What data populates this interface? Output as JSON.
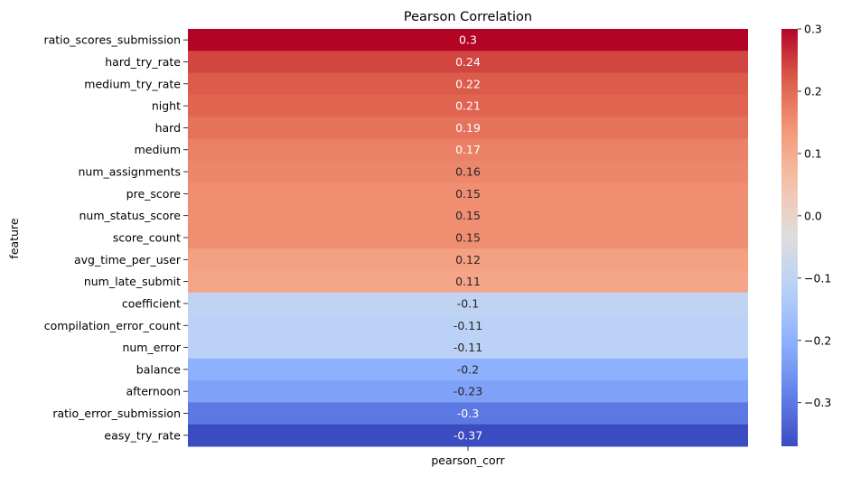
{
  "chart_data": {
    "type": "heatmap",
    "title": "Pearson Correlation",
    "xlabel": "pearson_corr",
    "ylabel": "feature",
    "columns": [
      "pearson_corr"
    ],
    "rows": [
      {
        "feature": "ratio_scores_submission",
        "value": 0.3,
        "label": "0.3"
      },
      {
        "feature": "hard_try_rate",
        "value": 0.24,
        "label": "0.24"
      },
      {
        "feature": "medium_try_rate",
        "value": 0.22,
        "label": "0.22"
      },
      {
        "feature": "night",
        "value": 0.21,
        "label": "0.21"
      },
      {
        "feature": "hard",
        "value": 0.19,
        "label": "0.19"
      },
      {
        "feature": "medium",
        "value": 0.17,
        "label": "0.17"
      },
      {
        "feature": "num_assignments",
        "value": 0.16,
        "label": "0.16"
      },
      {
        "feature": "pre_score",
        "value": 0.15,
        "label": "0.15"
      },
      {
        "feature": "num_status_score",
        "value": 0.15,
        "label": "0.15"
      },
      {
        "feature": "score_count",
        "value": 0.15,
        "label": "0.15"
      },
      {
        "feature": "avg_time_per_user",
        "value": 0.12,
        "label": "0.12"
      },
      {
        "feature": "num_late_submit",
        "value": 0.11,
        "label": "0.11"
      },
      {
        "feature": "coefficient",
        "value": -0.1,
        "label": "-0.1"
      },
      {
        "feature": "compilation_error_count",
        "value": -0.11,
        "label": "-0.11"
      },
      {
        "feature": "num_error",
        "value": -0.11,
        "label": "-0.11"
      },
      {
        "feature": "balance",
        "value": -0.2,
        "label": "-0.2"
      },
      {
        "feature": "afternoon",
        "value": -0.23,
        "label": "-0.23"
      },
      {
        "feature": "ratio_error_submission",
        "value": -0.3,
        "label": "-0.3"
      },
      {
        "feature": "easy_try_rate",
        "value": -0.37,
        "label": "-0.37"
      }
    ],
    "colormap": "coolwarm",
    "color_range": [
      -0.37,
      0.3
    ],
    "colorbar_ticks": [
      {
        "value": 0.3,
        "label": "0.3"
      },
      {
        "value": 0.2,
        "label": "0.2"
      },
      {
        "value": 0.1,
        "label": "0.1"
      },
      {
        "value": 0.0,
        "label": "0.0"
      },
      {
        "value": -0.1,
        "label": "−0.1"
      },
      {
        "value": -0.2,
        "label": "−0.2"
      },
      {
        "value": -0.3,
        "label": "−0.3"
      }
    ],
    "legend": "colorbar-right",
    "grid": false
  }
}
